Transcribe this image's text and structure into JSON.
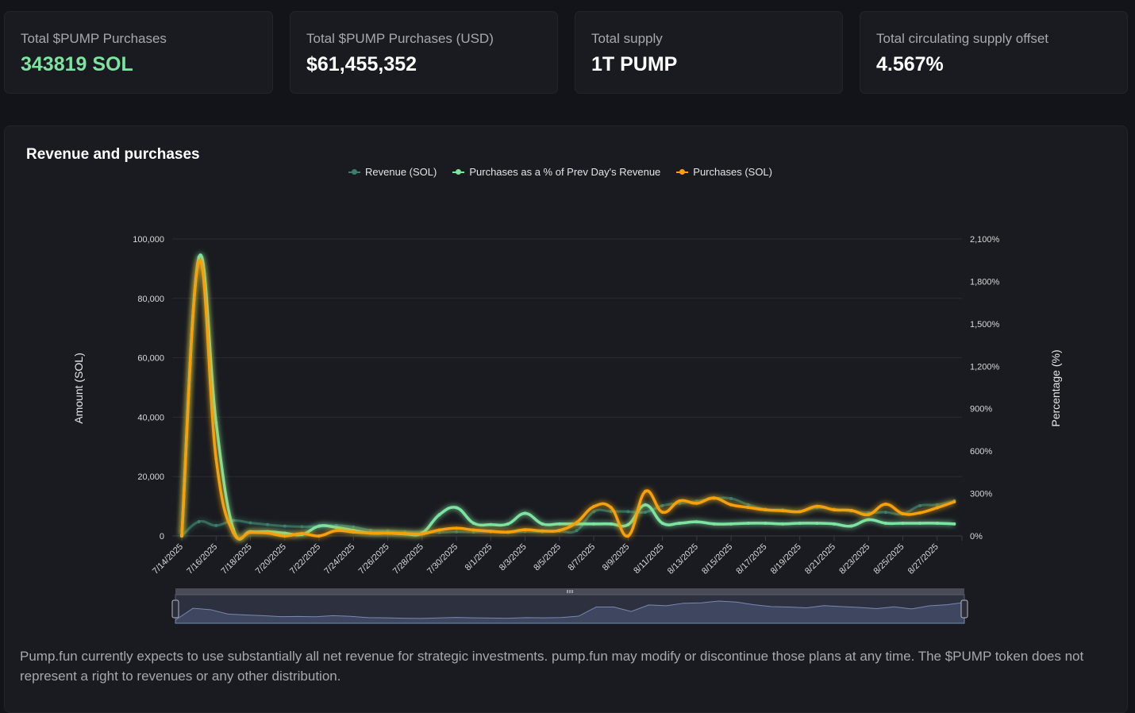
{
  "stats": [
    {
      "label": "Total $PUMP Purchases",
      "value": "343819 SOL"
    },
    {
      "label": "Total $PUMP Purchases (USD)",
      "value": "$61,455,352"
    },
    {
      "label": "Total supply",
      "value": "1T PUMP"
    },
    {
      "label": "Total circulating supply offset",
      "value": "4.567%"
    }
  ],
  "panel": {
    "title": "Revenue and purchases",
    "disclaimer": "Pump.fun currently expects to use substantially all net revenue for strategic investments. pump.fun may modify or discontinue those plans at any time. The $PUMP token does not represent a right to revenues or any other distribution."
  },
  "colors": {
    "revenue": "#3c7d6b",
    "percent": "#7ee3a1",
    "purchases": "#f5a00f",
    "accent_green": "#7ee3a1"
  },
  "chart_data": {
    "type": "line",
    "title": "Revenue and purchases",
    "legend_position": "top-center",
    "legend": [
      "Revenue (SOL)",
      "Purchases as a % of Prev Day's Revenue",
      "Purchases (SOL)"
    ],
    "ylabel": "Amount (SOL)",
    "ylabel_right": "Percentage (%)",
    "ylim": [
      0,
      100000
    ],
    "ylim_right": [
      0,
      2100
    ],
    "yticks": [
      "0",
      "20,000",
      "40,000",
      "60,000",
      "80,000",
      "100,000"
    ],
    "yticks_right": [
      "0%",
      "300%",
      "600%",
      "900%",
      "1,200%",
      "1,500%",
      "1,800%",
      "2,100%"
    ],
    "xticks": [
      "7/14/2025",
      "7/16/2025",
      "7/18/2025",
      "7/20/2025",
      "7/22/2025",
      "7/24/2025",
      "7/26/2025",
      "7/28/2025",
      "7/30/2025",
      "8/1/2025",
      "8/3/2025",
      "8/5/2025",
      "8/7/2025",
      "8/9/2025",
      "8/11/2025",
      "8/13/2025",
      "8/15/2025",
      "8/17/2025",
      "8/19/2025",
      "8/21/2025",
      "8/23/2025",
      "8/25/2025",
      "8/27/2025"
    ],
    "grid": true,
    "x": [
      "7/14",
      "7/15",
      "7/16",
      "7/17",
      "7/18",
      "7/19",
      "7/20",
      "7/21",
      "7/22",
      "7/23",
      "7/24",
      "7/25",
      "7/26",
      "7/27",
      "7/28",
      "7/29",
      "7/30",
      "7/31",
      "8/1",
      "8/2",
      "8/3",
      "8/4",
      "8/5",
      "8/6",
      "8/7",
      "8/8",
      "8/9",
      "8/10",
      "8/11",
      "8/12",
      "8/13",
      "8/14",
      "8/15",
      "8/16",
      "8/17",
      "8/18",
      "8/19",
      "8/20",
      "8/21",
      "8/22",
      "8/23",
      "8/24",
      "8/25",
      "8/26",
      "8/27",
      "8/28"
    ],
    "series": [
      {
        "name": "Revenue (SOL)",
        "axis": "left",
        "values": [
          0,
          4800,
          3500,
          5200,
          4400,
          3800,
          3300,
          3100,
          3200,
          3500,
          3000,
          1900,
          1700,
          1400,
          1300,
          1200,
          1400,
          1300,
          1300,
          1200,
          1500,
          1400,
          1600,
          1800,
          8200,
          8300,
          8200,
          8000,
          10200,
          11000,
          11700,
          12600,
          12600,
          10500,
          9000,
          8800,
          8200,
          9500,
          9000,
          8400,
          7800,
          8000,
          7400,
          10200,
          10500,
          11900
        ]
      },
      {
        "name": "Purchases as a % of Prev Day's Revenue",
        "axis": "right",
        "values": [
          0,
          1970,
          800,
          50,
          30,
          30,
          20,
          10,
          70,
          60,
          40,
          20,
          20,
          15,
          20,
          150,
          200,
          90,
          80,
          85,
          160,
          85,
          85,
          85,
          85,
          85,
          80,
          220,
          90,
          90,
          100,
          85,
          85,
          90,
          90,
          85,
          90,
          90,
          85,
          70,
          115,
          90,
          90,
          90,
          90,
          85
        ]
      },
      {
        "name": "Purchases (SOL)",
        "axis": "left",
        "values": [
          0,
          92500,
          26000,
          1200,
          1200,
          1000,
          0,
          800,
          0,
          1800,
          1300,
          1000,
          1000,
          800,
          700,
          2000,
          2600,
          2000,
          1600,
          1300,
          2100,
          1700,
          1900,
          4500,
          9900,
          9600,
          0,
          15000,
          8000,
          11800,
          11000,
          12800,
          10500,
          9600,
          8800,
          8500,
          8200,
          10000,
          8800,
          8600,
          7200,
          10700,
          7500,
          7800,
          9500,
          11500
        ]
      }
    ]
  },
  "navigator": {
    "range_start": "7/14/2025",
    "range_end": "8/28/2025",
    "handle_icon": "grip-lines-icon"
  }
}
